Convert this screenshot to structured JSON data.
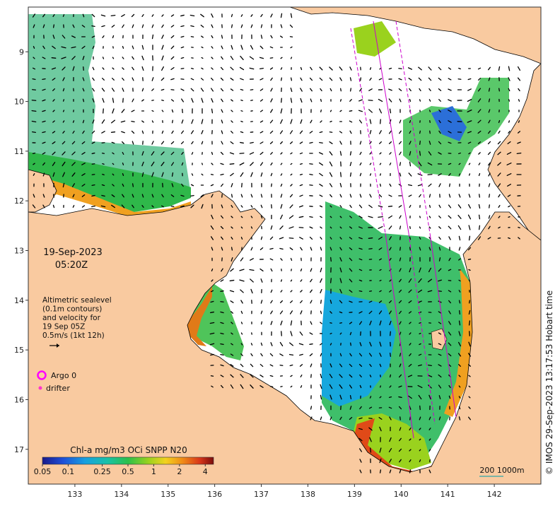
{
  "map": {
    "date": "19-Sep-2023",
    "time": "05:20Z",
    "legend_lines": [
      "Altimetric sealevel",
      "(0.1m contours)",
      "and velocity for",
      "19 Sep 05Z",
      "0.5m/s (1kt 12h)"
    ],
    "argo_label": "Argo 0",
    "drifter_label": "drifter",
    "colorbar_title": "Chl-a mg/m3 OCi SNPP N20",
    "colorbar_ticks": [
      "0.05",
      "0.1",
      "0.25",
      "0.5",
      "1",
      "2",
      "4"
    ],
    "colorbar_tick_values": [
      0.05,
      0.1,
      0.25,
      0.5,
      1,
      2,
      4
    ],
    "colorbar_range": [
      0.05,
      5
    ],
    "colorbar_scale": "log",
    "scale_bar_label": "200  1000m",
    "copyright": "© IMOS 29-Sep-2023 13:17:53 Hobart time",
    "lon_ticks": [
      133,
      134,
      135,
      136,
      137,
      138,
      139,
      140,
      141,
      142
    ],
    "lat_ticks": [
      9,
      10,
      11,
      12,
      13,
      14,
      15,
      16,
      17
    ],
    "lon_range": [
      132,
      143
    ],
    "lat_range": [
      -17.7,
      -8.1
    ],
    "colors": {
      "land": "#f9caa0",
      "coast": "#000000",
      "argo": "#ff00ff",
      "drifter": "#ff33cc",
      "track": "#cc00cc",
      "scale_bar": "#2ea8a8"
    }
  }
}
